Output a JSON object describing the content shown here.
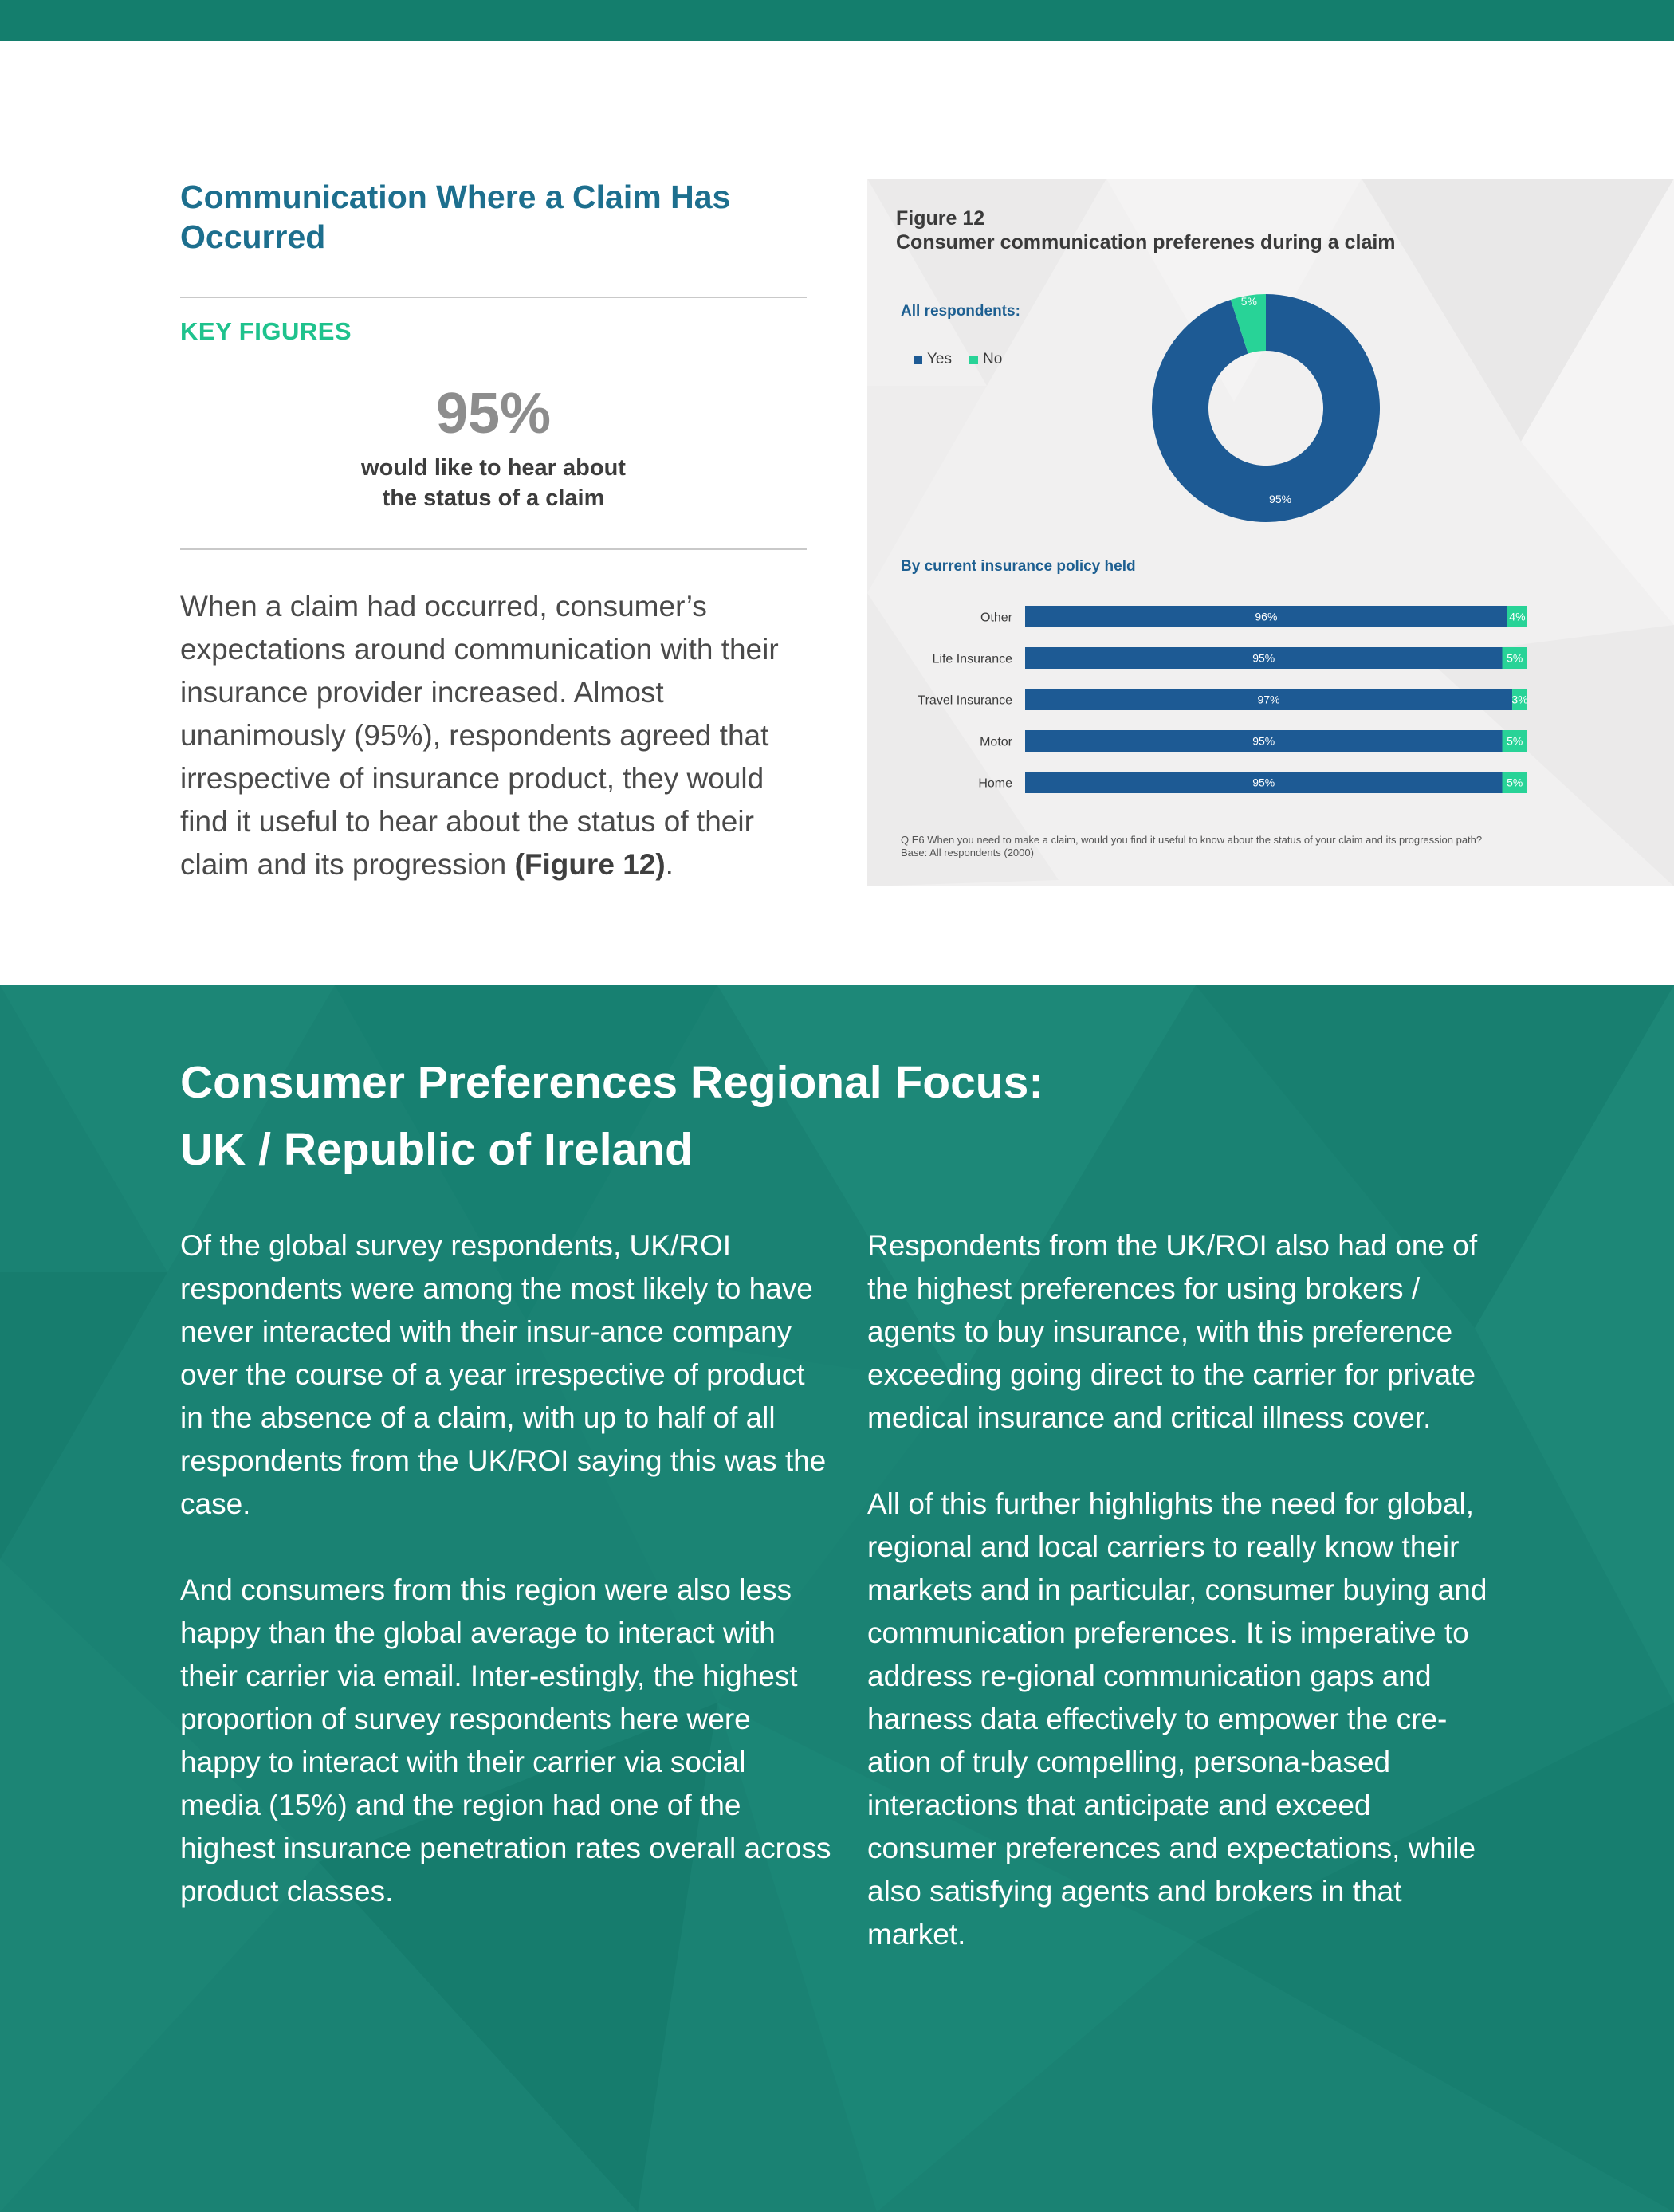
{
  "left": {
    "title": "Communication Where a Claim Has Occurred",
    "key_figures_label": "KEY FIGURES",
    "key_number": "95%",
    "key_caption_line1": "would like to hear about",
    "key_caption_line2": "the status of a claim",
    "body_text": "When a claim had occurred, consumer’s expectations around communication with their insurance provider increased. Almost unanimously (95%), respondents agreed that irrespective of insurance product, they would find it useful to hear about the status of their claim and its progression ",
    "body_ref": "(Figure 12)",
    "body_end": "."
  },
  "figure": {
    "number": "Figure 12",
    "title": "Consumer communication preferenes during a claim",
    "all_label": "All respondents:",
    "by_policy_label": "By current insurance policy held",
    "footnote_line1": "Q E6 When you need to make a claim, would you find it useful to know about the status of your claim and its progression path?",
    "footnote_line2": "Base: All respondents (2000)"
  },
  "chart_data": [
    {
      "type": "pie",
      "title": "",
      "labels": [
        "Yes",
        "No"
      ],
      "values": [
        95,
        5
      ],
      "value_labels": [
        "95%",
        "5%"
      ],
      "colors": [
        "#1d5a94",
        "#28d397"
      ],
      "legend": "left"
    },
    {
      "type": "bar",
      "orientation": "horizontal",
      "stacked": true,
      "categories": [
        "Other",
        "Life Insurance",
        "Travel Insurance",
        "Motor",
        "Home"
      ],
      "series": [
        {
          "name": "Yes",
          "values": [
            96,
            95,
            97,
            95,
            95
          ],
          "labels": [
            "96%",
            "95%",
            "97%",
            "95%",
            "95%"
          ],
          "color": "#1d5a94"
        },
        {
          "name": "No",
          "values": [
            4,
            5,
            3,
            5,
            5
          ],
          "labels": [
            "4%",
            "5%",
            "3%",
            "5%",
            "5%"
          ],
          "color": "#28d397"
        }
      ],
      "xlim": [
        0,
        100
      ]
    }
  ],
  "bottom": {
    "title_line1": "Consumer Preferences Regional Focus:",
    "title_line2": "UK / Republic of Ireland",
    "left_p1": "Of the global survey respondents, UK/ROI respondents were among the most likely to have never interacted with their insur-ance company over the course of a year irrespective of product in the absence of a claim, with up to half of all respondents from the UK/ROI saying this was the case.",
    "left_p2": "And consumers from this region were also less happy than the global average to interact with their carrier via email. Inter-estingly, the highest proportion of survey respondents here were happy to interact with their carrier via social media (15%) and the region had one of the highest insurance penetration rates overall across product classes.",
    "right_p1": "Respondents from the UK/ROI also had one of the highest preferences for using brokers / agents to buy insurance, with this preference exceeding going direct to the carrier for private medical insurance and critical illness cover.",
    "right_p2": "All of this further highlights the need for global, regional and local carriers to really know their markets and in particular, consumer buying and communication preferences. It is imperative to address re-gional communication gaps and harness data effectively to empower the cre-ation of truly compelling, persona-based interactions that anticipate and exceed consumer preferences and expectations, while also satisfying agents and brokers in that market."
  }
}
